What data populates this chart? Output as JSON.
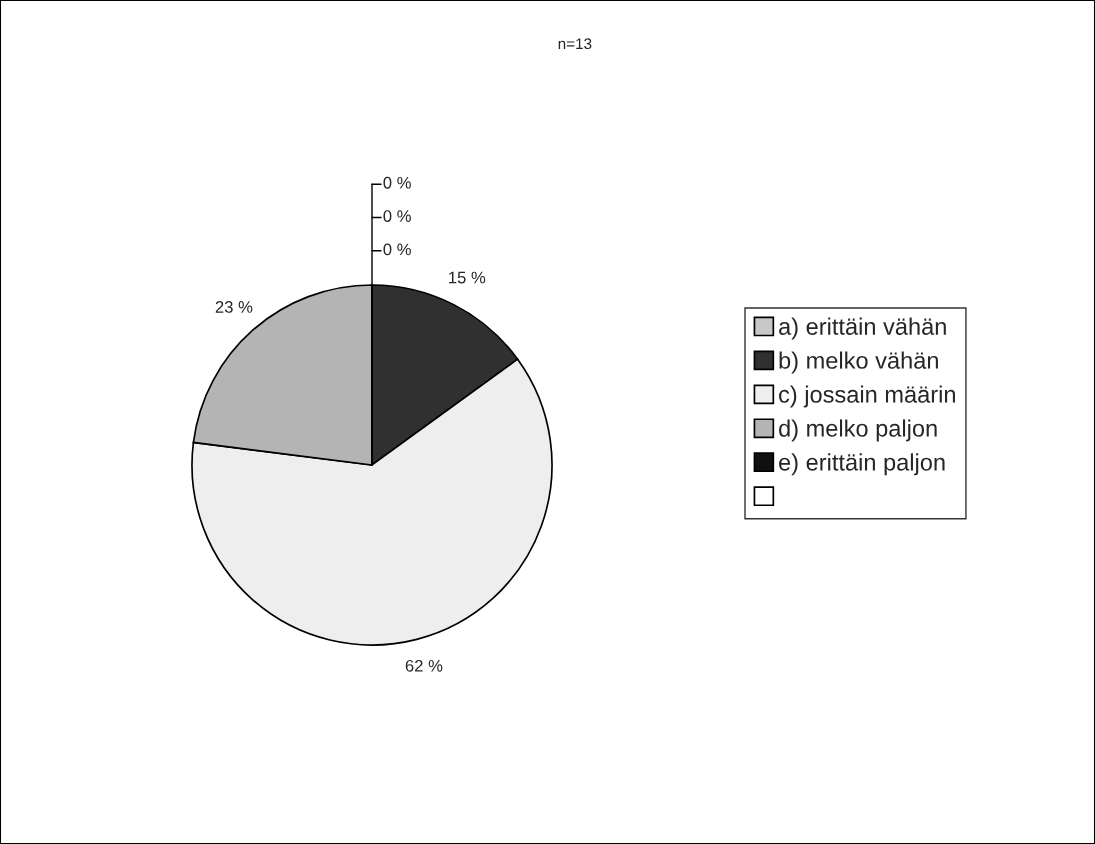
{
  "chart_data": {
    "type": "pie",
    "title": "n=13",
    "categories": [
      "a) erittäin vähän",
      "b) melko vähän",
      "c) jossain määrin",
      "d) melko paljon",
      "e) erittäin paljon",
      null
    ],
    "values": [
      0,
      15,
      62,
      23,
      0,
      0
    ],
    "value_labels": [
      "0 %",
      "15 %",
      "62 %",
      "23 %",
      "0 %",
      "0 %"
    ],
    "colors": [
      "#c8c8c8",
      "#303030",
      "#eeeeee",
      "#b4b4b4",
      "#101010",
      "#ffffff"
    ],
    "legend": "right"
  }
}
